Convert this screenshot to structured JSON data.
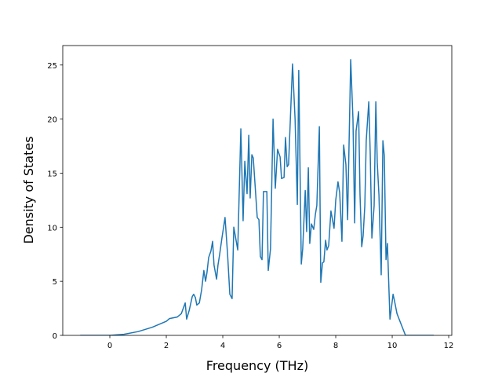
{
  "chart_data": {
    "type": "line",
    "xlabel": "Frequency (THz)",
    "ylabel": "Density of States",
    "color": "#1f77b4",
    "x": [
      -1.05,
      0,
      0.5,
      1.0,
      1.5,
      2.0,
      2.11,
      2.39,
      2.53,
      2.67,
      2.72,
      2.81,
      2.92,
      2.97,
      3.03,
      3.08,
      3.17,
      3.25,
      3.33,
      3.39,
      3.44,
      3.5,
      3.58,
      3.64,
      3.69,
      3.78,
      3.83,
      3.89,
      3.97,
      4.08,
      4.17,
      4.25,
      4.33,
      4.39,
      4.53,
      4.64,
      4.72,
      4.78,
      4.86,
      4.92,
      4.97,
      5.03,
      5.08,
      5.22,
      5.28,
      5.33,
      5.39,
      5.44,
      5.56,
      5.61,
      5.69,
      5.78,
      5.86,
      5.94,
      6.03,
      6.08,
      6.17,
      6.22,
      6.28,
      6.33,
      6.47,
      6.56,
      6.64,
      6.69,
      6.78,
      6.83,
      6.92,
      6.97,
      7.03,
      7.08,
      7.14,
      7.22,
      7.28,
      7.33,
      7.42,
      7.47,
      7.53,
      7.58,
      7.64,
      7.69,
      7.75,
      7.83,
      7.94,
      8.0,
      8.08,
      8.14,
      8.22,
      8.28,
      8.36,
      8.42,
      8.53,
      8.61,
      8.67,
      8.72,
      8.81,
      8.86,
      8.92,
      8.97,
      9.03,
      9.08,
      9.17,
      9.22,
      9.28,
      9.36,
      9.42,
      9.47,
      9.53,
      9.61,
      9.67,
      9.72,
      9.78,
      9.83,
      9.92,
      9.97,
      10.03,
      10.08,
      10.17,
      10.47,
      11.47
    ],
    "values": [
      0,
      0,
      0.1,
      0.35,
      0.75,
      1.3,
      1.55,
      1.7,
      2.0,
      3.0,
      1.5,
      2.3,
      3.6,
      3.8,
      3.5,
      2.8,
      3.0,
      4.2,
      6.0,
      5.0,
      5.8,
      7.2,
      7.8,
      8.7,
      6.5,
      5.2,
      6.5,
      7.5,
      9.0,
      10.9,
      7.5,
      3.8,
      3.4,
      10.0,
      7.9,
      19.1,
      10.6,
      16.1,
      13.1,
      18.5,
      12.7,
      16.7,
      16.4,
      10.9,
      10.7,
      7.3,
      7.0,
      13.3,
      13.3,
      6.0,
      8.0,
      20.0,
      13.6,
      17.2,
      16.5,
      14.5,
      14.6,
      18.3,
      15.6,
      15.8,
      25.1,
      20.0,
      12.1,
      24.5,
      6.6,
      8.0,
      13.4,
      9.6,
      15.5,
      8.5,
      10.3,
      9.8,
      11.2,
      12.0,
      19.3,
      4.9,
      6.7,
      6.8,
      8.8,
      7.9,
      8.3,
      11.5,
      9.9,
      12.5,
      14.2,
      13.2,
      8.7,
      17.6,
      15.8,
      10.7,
      25.5,
      20.0,
      10.4,
      18.9,
      20.7,
      13.0,
      8.2,
      9.2,
      12.0,
      18.0,
      21.6,
      17.0,
      9.0,
      12.0,
      21.6,
      16.0,
      13.0,
      5.6,
      18.0,
      16.6,
      7.0,
      8.5,
      1.5,
      2.5,
      3.8,
      3.2,
      2.0,
      0,
      0
    ],
    "xlim": [
      -1.667,
      12.11
    ],
    "xticks": [
      0,
      2,
      4,
      6,
      8,
      10,
      12
    ],
    "ylim": [
      0,
      26.8
    ],
    "yticks": [
      0,
      5,
      10,
      15,
      20,
      25
    ]
  }
}
